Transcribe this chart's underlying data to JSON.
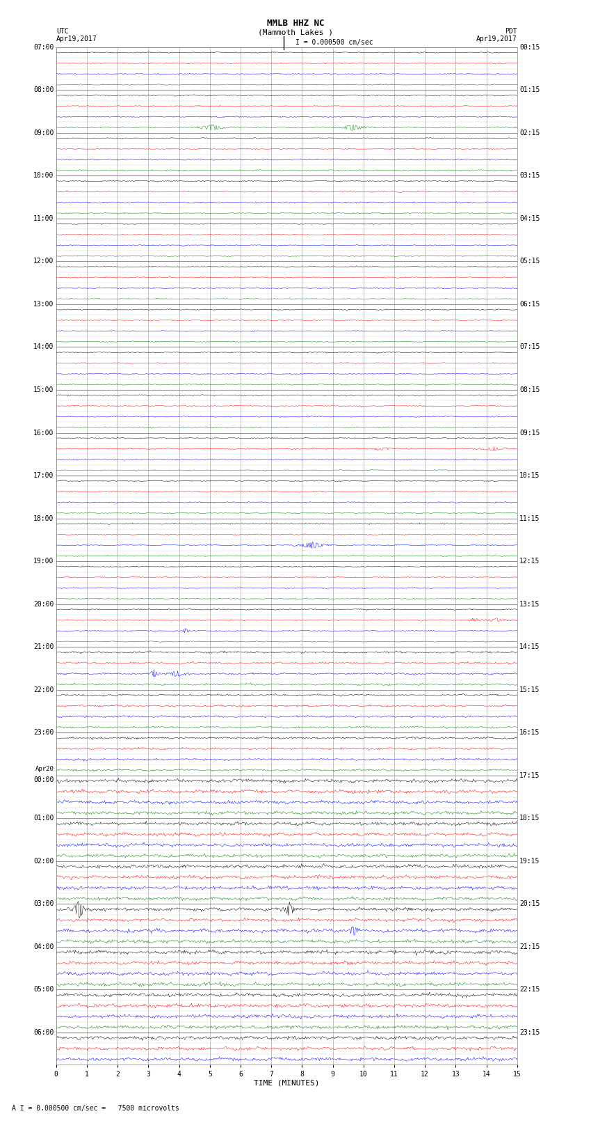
{
  "title_line1": "MMLB HHZ NC",
  "title_line2": "(Mammoth Lakes )",
  "scale_label": "I = 0.000500 cm/sec",
  "xlabel": "TIME (MINUTES)",
  "footer": "A I = 0.000500 cm/sec =   7500 microvolts",
  "xmin": 0,
  "xmax": 15,
  "xticks": [
    0,
    1,
    2,
    3,
    4,
    5,
    6,
    7,
    8,
    9,
    10,
    11,
    12,
    13,
    14,
    15
  ],
  "bg_color": "#ffffff",
  "trace_colors": [
    "black",
    "red",
    "blue",
    "green"
  ],
  "utc_times": [
    "07:00",
    "",
    "",
    "",
    "08:00",
    "",
    "",
    "",
    "09:00",
    "",
    "",
    "",
    "10:00",
    "",
    "",
    "",
    "11:00",
    "",
    "",
    "",
    "12:00",
    "",
    "",
    "",
    "13:00",
    "",
    "",
    "",
    "14:00",
    "",
    "",
    "",
    "15:00",
    "",
    "",
    "",
    "16:00",
    "",
    "",
    "",
    "17:00",
    "",
    "",
    "",
    "18:00",
    "",
    "",
    "",
    "19:00",
    "",
    "",
    "",
    "20:00",
    "",
    "",
    "",
    "21:00",
    "",
    "",
    "",
    "22:00",
    "",
    "",
    "",
    "23:00",
    "",
    "",
    "",
    "Apr20\n00:00",
    "",
    "",
    "",
    "01:00",
    "",
    "",
    "",
    "02:00",
    "",
    "",
    "",
    "03:00",
    "",
    "",
    "",
    "04:00",
    "",
    "",
    "",
    "05:00",
    "",
    "",
    "",
    "06:00",
    "",
    ""
  ],
  "pdt_times": [
    "00:15",
    "",
    "",
    "",
    "01:15",
    "",
    "",
    "",
    "02:15",
    "",
    "",
    "",
    "03:15",
    "",
    "",
    "",
    "04:15",
    "",
    "",
    "",
    "05:15",
    "",
    "",
    "",
    "06:15",
    "",
    "",
    "",
    "07:15",
    "",
    "",
    "",
    "08:15",
    "",
    "",
    "",
    "09:15",
    "",
    "",
    "",
    "10:15",
    "",
    "",
    "",
    "11:15",
    "",
    "",
    "",
    "12:15",
    "",
    "",
    "",
    "13:15",
    "",
    "",
    "",
    "14:15",
    "",
    "",
    "",
    "15:15",
    "",
    "",
    "",
    "16:15",
    "",
    "",
    "",
    "17:15",
    "",
    "",
    "",
    "18:15",
    "",
    "",
    "",
    "19:15",
    "",
    "",
    "",
    "20:15",
    "",
    "",
    "",
    "21:15",
    "",
    "",
    "",
    "22:15",
    "",
    "",
    "",
    "23:15",
    "",
    ""
  ],
  "n_rows": 95,
  "noise_seed": 42,
  "grid_color": "#888888",
  "label_fontsize": 7,
  "title_fontsize": 9,
  "amp_early": 0.04,
  "amp_mid": 0.07,
  "amp_late": 0.12,
  "amp_transition1": 56,
  "amp_transition2": 68,
  "spike_prob": 0.12
}
